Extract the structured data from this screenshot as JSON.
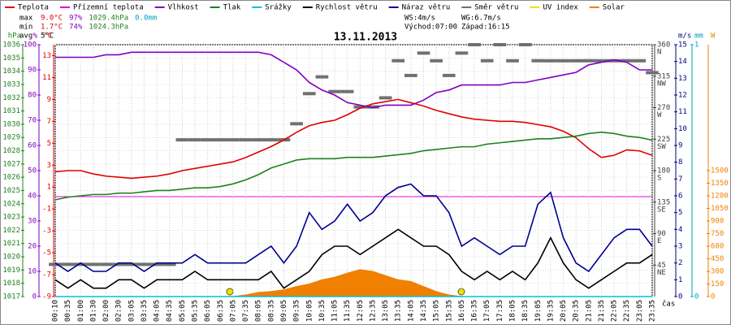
{
  "chart_data": {
    "type": "line",
    "title": "13.11.2013",
    "stats": {
      "rows": [
        {
          "label": "max",
          "items": [
            {
              "text": "9.0°C",
              "color": "#e00000"
            },
            {
              "text": "97%",
              "color": "#8000c0"
            },
            {
              "text": "1029.4hPa",
              "color": "#208020"
            },
            {
              "text": "0.0mm",
              "color": "#00a0c0"
            }
          ]
        },
        {
          "label": "min",
          "items": [
            {
              "text": "1.7°C",
              "color": "#e00000"
            },
            {
              "text": "74%",
              "color": "#8000c0"
            },
            {
              "text": "1024.3hPa",
              "color": "#208020"
            }
          ]
        },
        {
          "label": "avg",
          "items": [
            {
              "text": "5°C",
              "color": "#000000"
            }
          ]
        }
      ],
      "wind": [
        "WS:4m/s",
        "WG:6.7m/s"
      ],
      "sun": [
        "Východ:07:00",
        "Západ:16:15"
      ]
    },
    "x_label": "čas",
    "categories": [
      "00:10",
      "00:35",
      "01:00",
      "01:30",
      "02:00",
      "02:30",
      "03:05",
      "03:35",
      "04:05",
      "04:35",
      "05:05",
      "05:35",
      "06:05",
      "06:35",
      "07:05",
      "07:35",
      "08:05",
      "08:35",
      "09:05",
      "09:35",
      "10:05",
      "10:35",
      "11:05",
      "11:35",
      "12:05",
      "12:35",
      "13:05",
      "13:35",
      "14:05",
      "14:35",
      "15:05",
      "15:35",
      "16:05",
      "16:35",
      "17:05",
      "17:35",
      "18:05",
      "18:35",
      "19:05",
      "19:35",
      "20:05",
      "20:35",
      "21:05",
      "21:35",
      "22:05",
      "22:35",
      "23:05",
      "23:35"
    ],
    "axes": {
      "pressure": {
        "label": "hPa",
        "color": "#208020",
        "ylim": [
          1017,
          1036
        ],
        "yticks": [
          1017,
          1018,
          1019,
          1020,
          1021,
          1022,
          1023,
          1024,
          1025,
          1026,
          1027,
          1028,
          1029,
          1030,
          1031,
          1032,
          1033,
          1034,
          1035,
          1036
        ]
      },
      "humidity": {
        "label": "%",
        "color": "#8000c0",
        "ylim": [
          0,
          100
        ],
        "yticks": [
          0,
          10,
          20,
          30,
          40,
          50,
          60,
          70,
          80,
          90,
          100
        ]
      },
      "temperature": {
        "label": "°C",
        "color": "#e00000",
        "ylim": [
          -9,
          14
        ],
        "yticks": [
          -9,
          -7,
          -5,
          -3,
          -1,
          1,
          3,
          5,
          7,
          9,
          11,
          13
        ]
      },
      "direction": {
        "color": "#404040",
        "ylim": [
          0,
          360
        ],
        "yticks": [
          45,
          90,
          135,
          180,
          225,
          270,
          315,
          360
        ],
        "compass": [
          "NE",
          "E",
          "SE",
          "S",
          "SW",
          "W",
          "NW",
          "N"
        ]
      },
      "wind": {
        "label": "m/s",
        "color": "#000080",
        "ylim": [
          0,
          15
        ],
        "yticks": [
          0,
          1,
          2,
          3,
          4,
          5,
          6,
          7,
          8,
          9,
          10,
          11,
          12,
          13,
          14,
          15
        ]
      },
      "rain": {
        "label": "mm",
        "color": "#00a0c0",
        "ylim": [
          0,
          1
        ],
        "yticks": [
          0,
          1
        ]
      },
      "solar": {
        "label": "W",
        "color": "#f08000",
        "ylim": [
          0,
          3000
        ],
        "yticks": [
          0,
          150,
          300,
          450,
          600,
          750,
          900,
          1050,
          1200,
          1350,
          1500
        ]
      }
    },
    "series": [
      {
        "name": "Teplota",
        "color": "#e00000",
        "axis": "temperature",
        "type": "line",
        "values": [
          2.4,
          2.5,
          2.5,
          2.2,
          2.0,
          1.9,
          1.8,
          1.9,
          2.0,
          2.2,
          2.5,
          2.7,
          2.9,
          3.1,
          3.3,
          3.7,
          4.2,
          4.7,
          5.3,
          6.0,
          6.6,
          6.9,
          7.1,
          7.6,
          8.2,
          8.6,
          8.8,
          9.0,
          8.7,
          8.4,
          8.0,
          7.7,
          7.4,
          7.2,
          7.1,
          7.0,
          7.0,
          6.9,
          6.7,
          6.5,
          6.1,
          5.5,
          4.5,
          3.7,
          3.9,
          4.4,
          4.3,
          3.9
        ]
      },
      {
        "name": "Přízemní teplota",
        "color": "#e000e0",
        "axis": "temperature",
        "type": "line"
      },
      {
        "name": "Vlhkost",
        "color": "#8000c0",
        "axis": "humidity",
        "type": "line",
        "values": [
          95,
          95,
          95,
          95,
          96,
          96,
          97,
          97,
          97,
          97,
          97,
          97,
          97,
          97,
          97,
          97,
          97,
          96,
          93,
          90,
          85,
          82,
          80,
          77,
          76,
          75,
          76,
          76,
          76,
          78,
          81,
          82,
          84,
          84,
          84,
          84,
          85,
          85,
          86,
          87,
          88,
          89,
          92,
          93,
          94,
          93,
          90,
          90
        ]
      },
      {
        "name": "Tlak",
        "color": "#208020",
        "axis": "pressure",
        "type": "line",
        "values": [
          1024.3,
          1024.5,
          1024.6,
          1024.7,
          1024.7,
          1024.8,
          1024.8,
          1024.9,
          1025.0,
          1025.0,
          1025.1,
          1025.2,
          1025.2,
          1025.3,
          1025.5,
          1025.8,
          1026.2,
          1026.7,
          1027.0,
          1027.3,
          1027.4,
          1027.4,
          1027.4,
          1027.5,
          1027.5,
          1027.5,
          1027.6,
          1027.7,
          1027.8,
          1028.0,
          1028.1,
          1028.2,
          1028.3,
          1028.3,
          1028.5,
          1028.6,
          1028.7,
          1028.8,
          1028.9,
          1028.9,
          1029.0,
          1029.1,
          1029.3,
          1029.4,
          1029.3,
          1029.1,
          1029.0,
          1028.8
        ]
      },
      {
        "name": "Srážky",
        "color": "#00c0e0",
        "axis": "rain",
        "type": "line",
        "values": [
          0,
          0,
          0,
          0,
          0,
          0,
          0,
          0,
          0,
          0,
          0,
          0,
          0,
          0,
          0,
          0,
          0,
          0,
          0,
          0,
          0,
          0,
          0,
          0,
          0,
          0,
          0,
          0,
          0,
          0,
          0,
          0,
          0,
          0,
          0,
          0,
          0,
          0,
          0,
          0,
          0,
          0,
          0,
          0,
          0,
          0,
          0,
          0
        ]
      },
      {
        "name": "Rychlost větru",
        "color": "#000000",
        "axis": "wind",
        "type": "line",
        "values": [
          1,
          0.5,
          1,
          0.5,
          0.5,
          1,
          1,
          0.5,
          1,
          1,
          1,
          1.5,
          1,
          1,
          1,
          1,
          1,
          1.5,
          0.5,
          1,
          1.5,
          2.5,
          3,
          3,
          2.5,
          3,
          3.5,
          4,
          3.5,
          3,
          3,
          2.5,
          1.5,
          1,
          1.5,
          1,
          1.5,
          1,
          2,
          3.5,
          2,
          1,
          0.5,
          1,
          1.5,
          2,
          2,
          2.5
        ]
      },
      {
        "name": "Náraz větru",
        "color": "#000090",
        "axis": "wind",
        "type": "line",
        "values": [
          2,
          1.5,
          2,
          1.5,
          1.5,
          2,
          2,
          1.5,
          2,
          2,
          2,
          2.5,
          2,
          2,
          2,
          2,
          2.5,
          3,
          2,
          3,
          5,
          4,
          4.5,
          5.5,
          4.5,
          5,
          6,
          6.5,
          6.7,
          6,
          6,
          5,
          3,
          3.5,
          3,
          2.5,
          3,
          3,
          5.5,
          6.2,
          3.5,
          2,
          1.5,
          2.5,
          3.5,
          4,
          4,
          3
        ]
      },
      {
        "name": "Směr větru",
        "color": "#707070",
        "axis": "direction",
        "type": "dash",
        "values": [
          46,
          46,
          46,
          46,
          46,
          46,
          46,
          46,
          46,
          46,
          224,
          224,
          224,
          224,
          224,
          224,
          224,
          224,
          224,
          247,
          290,
          314,
          293,
          293,
          271,
          271,
          284,
          337,
          316,
          348,
          337,
          316,
          348,
          360,
          337,
          360,
          337,
          360,
          337,
          337,
          337,
          337,
          337,
          337,
          337,
          337,
          337,
          320
        ]
      },
      {
        "name": "UV index",
        "color": "#f0e000",
        "axis": "solar",
        "type": "line"
      },
      {
        "name": "Solar",
        "color": "#f08000",
        "axis": "solar",
        "type": "area",
        "values": [
          0,
          0,
          0,
          0,
          0,
          0,
          0,
          0,
          0,
          0,
          0,
          0,
          0,
          0,
          0,
          20,
          50,
          60,
          80,
          120,
          150,
          200,
          230,
          280,
          320,
          300,
          250,
          200,
          180,
          120,
          60,
          20,
          0,
          0,
          0,
          0,
          0,
          0,
          0,
          0,
          0,
          0,
          0,
          0,
          0,
          0,
          0,
          0
        ]
      }
    ]
  }
}
